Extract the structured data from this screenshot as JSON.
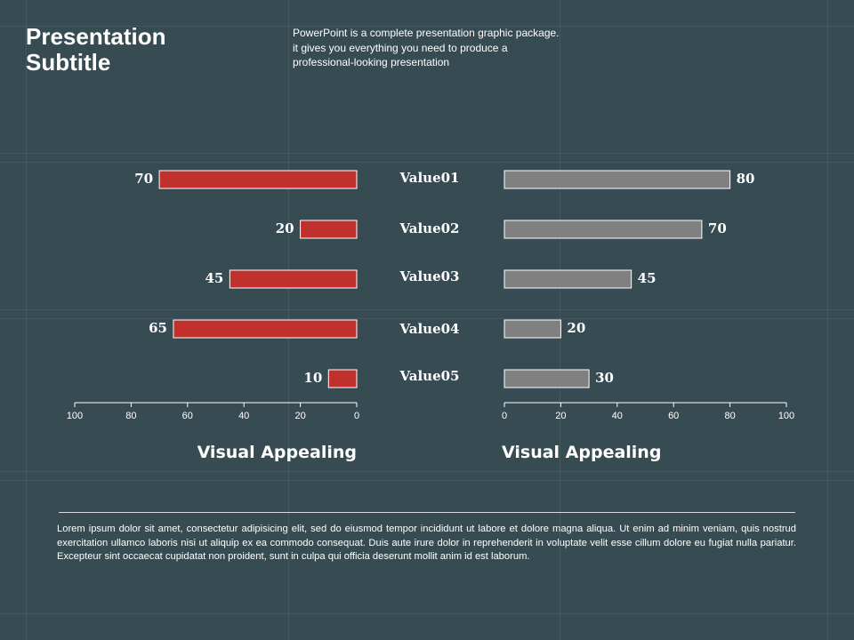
{
  "slide": {
    "title": "Presentation Subtitle",
    "description": "PowerPoint is a complete presentation graphic package. it gives you everything  you need to produce a professional-looking  presentation",
    "body_text": "Lorem ipsum dolor sit amet, consectetur adipisicing elit, sed do eiusmod tempor incididunt ut labore et dolore magna aliqua. Ut enim ad minim veniam, quis nostrud exercitation ullamco laboris nisi ut aliquip ex ea commodo consequat. Duis aute irure dolor in reprehenderit in voluptate velit esse cillum dolore eu fugiat nulla pariatur. Excepteur sint occaecat cupidatat non proident, sunt in culpa qui officia deserunt mollit anim id est laborum."
  },
  "chart_data": [
    {
      "type": "bar",
      "orientation": "horizontal",
      "direction": "right-to-left",
      "categories": [
        "Value01",
        "Value02",
        "Value03",
        "Value04",
        "Value05"
      ],
      "values": [
        70,
        20,
        45,
        65,
        10
      ],
      "xlabel": "Visual Appealing",
      "xlim": [
        0,
        100
      ],
      "xticks": [
        "100",
        "80",
        "60",
        "40",
        "20",
        "0"
      ],
      "color": "#c0302c",
      "data_labels": true
    },
    {
      "type": "bar",
      "orientation": "horizontal",
      "direction": "left-to-right",
      "categories": [
        "Value01",
        "Value02",
        "Value03",
        "Value04",
        "Value05"
      ],
      "values": [
        80,
        70,
        45,
        20,
        30
      ],
      "xlabel": "Visual Appealing",
      "xlim": [
        0,
        100
      ],
      "xticks": [
        "0",
        "20",
        "40",
        "60",
        "80",
        "100"
      ],
      "color": "#808080",
      "data_labels": true
    }
  ]
}
